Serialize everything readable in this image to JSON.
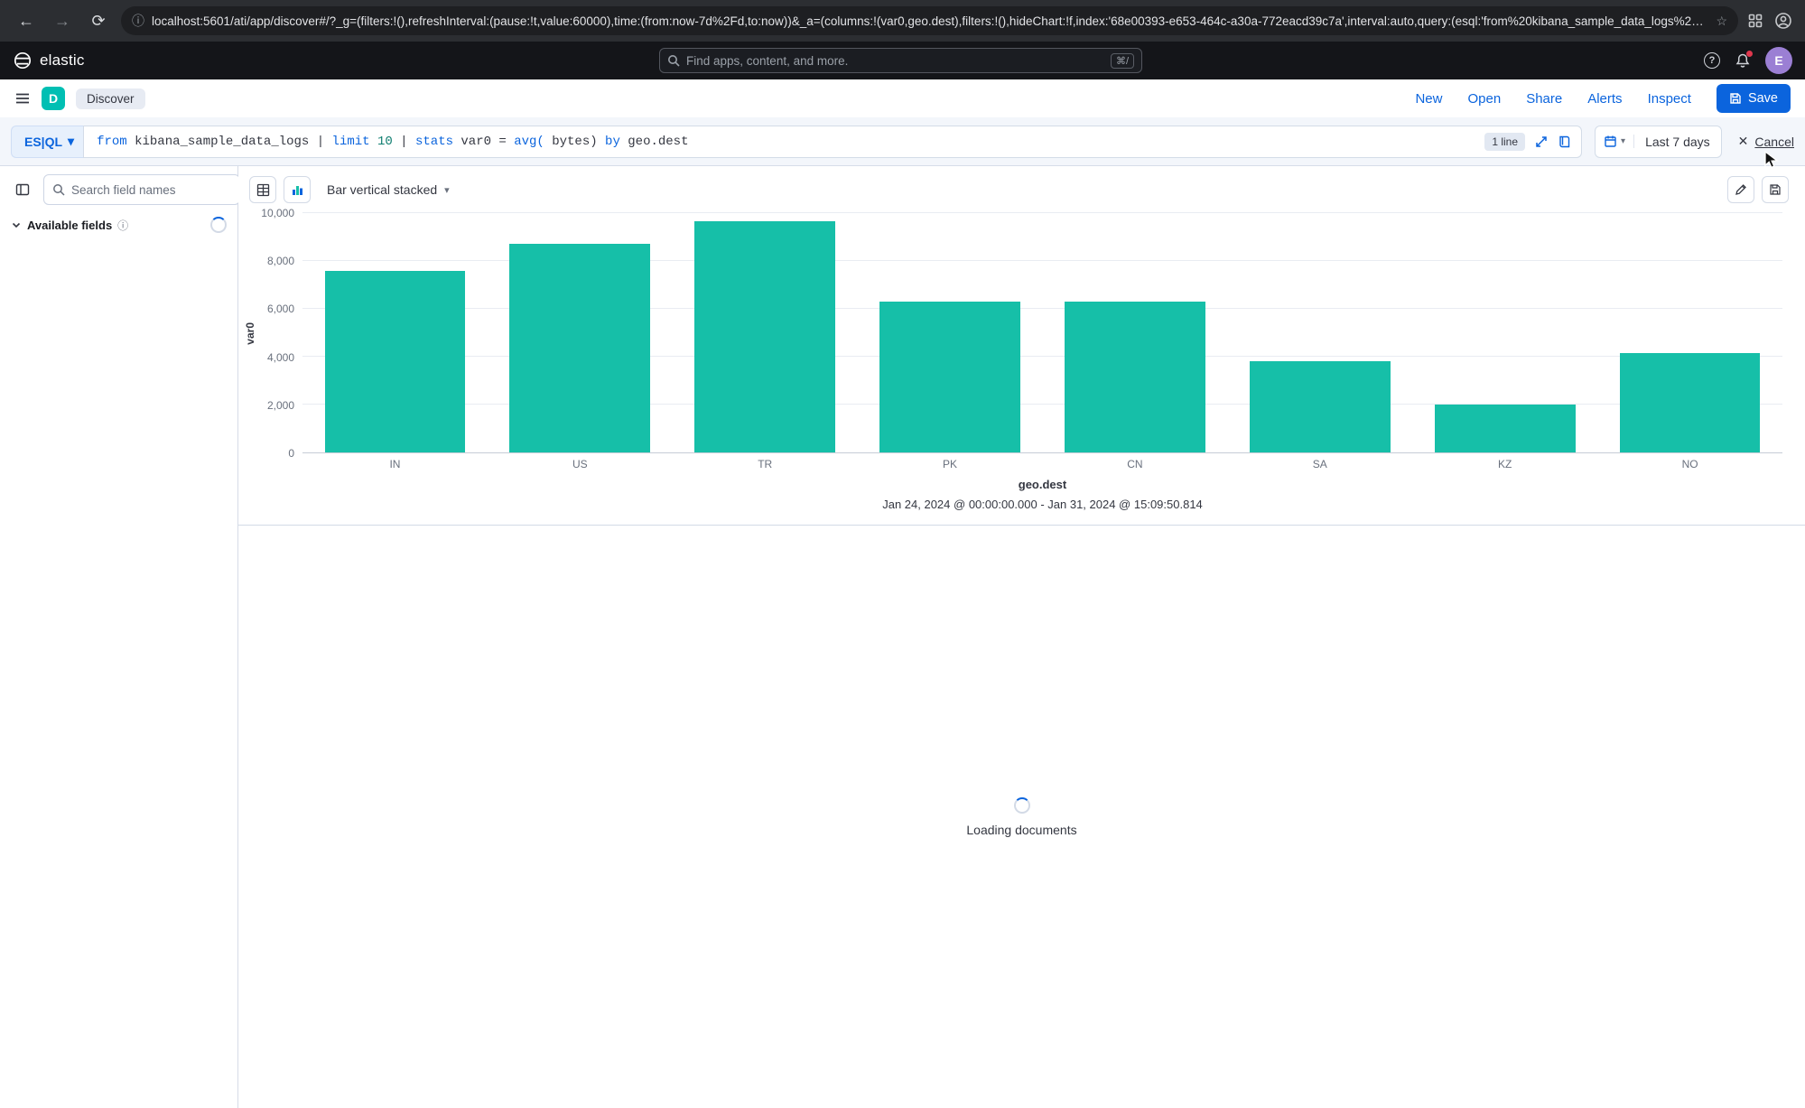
{
  "browser": {
    "url": "localhost:5601/ati/app/discover#/?_g=(filters:!(),refreshInterval:(pause:!t,value:60000),time:(from:now-7d%2Fd,to:now))&_a=(columns:!(var0,geo.dest),filters:!(),hideChart:!f,index:'68e00393-e653-464c-a30a-772eacd39c7a',interval:auto,query:(esql:'from%20kibana_sample_data_logs%20%7..."
  },
  "header": {
    "brand": "elastic",
    "search_placeholder": "Find apps, content, and more.",
    "search_shortcut": "⌘/",
    "avatar_initial": "E"
  },
  "nav": {
    "app_initial": "D",
    "breadcrumb": "Discover",
    "links": [
      "New",
      "Open",
      "Share",
      "Alerts",
      "Inspect"
    ],
    "save_label": "Save"
  },
  "querybar": {
    "lang_label": "ES|QL",
    "segments": [
      {
        "text": "from",
        "type": "kw"
      },
      {
        "text": " kibana_sample_data_logs ",
        "type": "id"
      },
      {
        "text": "| ",
        "type": "id"
      },
      {
        "text": "limit",
        "type": "kw"
      },
      {
        "text": " 10 ",
        "type": "num"
      },
      {
        "text": "| ",
        "type": "id"
      },
      {
        "text": "stats",
        "type": "kw"
      },
      {
        "text": " var0 = ",
        "type": "id"
      },
      {
        "text": "avg(",
        "type": "fn"
      },
      {
        "text": " bytes) ",
        "type": "id"
      },
      {
        "text": "by",
        "type": "kw"
      },
      {
        "text": " geo.dest",
        "type": "id"
      }
    ],
    "line_badge": "1 line",
    "time_range": "Last 7 days",
    "cancel_label": "Cancel"
  },
  "sidebar": {
    "search_placeholder": "Search field names",
    "section_title": "Available fields"
  },
  "controls": {
    "chart_type": "Bar vertical stacked"
  },
  "chart_data": {
    "type": "bar",
    "categories": [
      "IN",
      "US",
      "TR",
      "PK",
      "CN",
      "SA",
      "KZ",
      "NO"
    ],
    "values": [
      7600,
      8700,
      9650,
      6300,
      6300,
      3800,
      2000,
      4150
    ],
    "xlabel": "geo.dest",
    "ylabel": "var0",
    "ylim": [
      0,
      10000
    ],
    "ytick_labels": [
      "0",
      "2,000",
      "4,000",
      "6,000",
      "8,000",
      "10,000"
    ],
    "bar_color": "#16bfa8",
    "subtitle": "Jan 24, 2024 @ 00:00:00.000 - Jan 31, 2024 @ 15:09:50.814",
    "grid": true,
    "legend": "none"
  },
  "main": {
    "loading_text": "Loading documents"
  },
  "colors": {
    "accent_blue": "#0b64dd",
    "badge_teal": "#00bfb3",
    "bar_teal": "#16bfa8"
  }
}
